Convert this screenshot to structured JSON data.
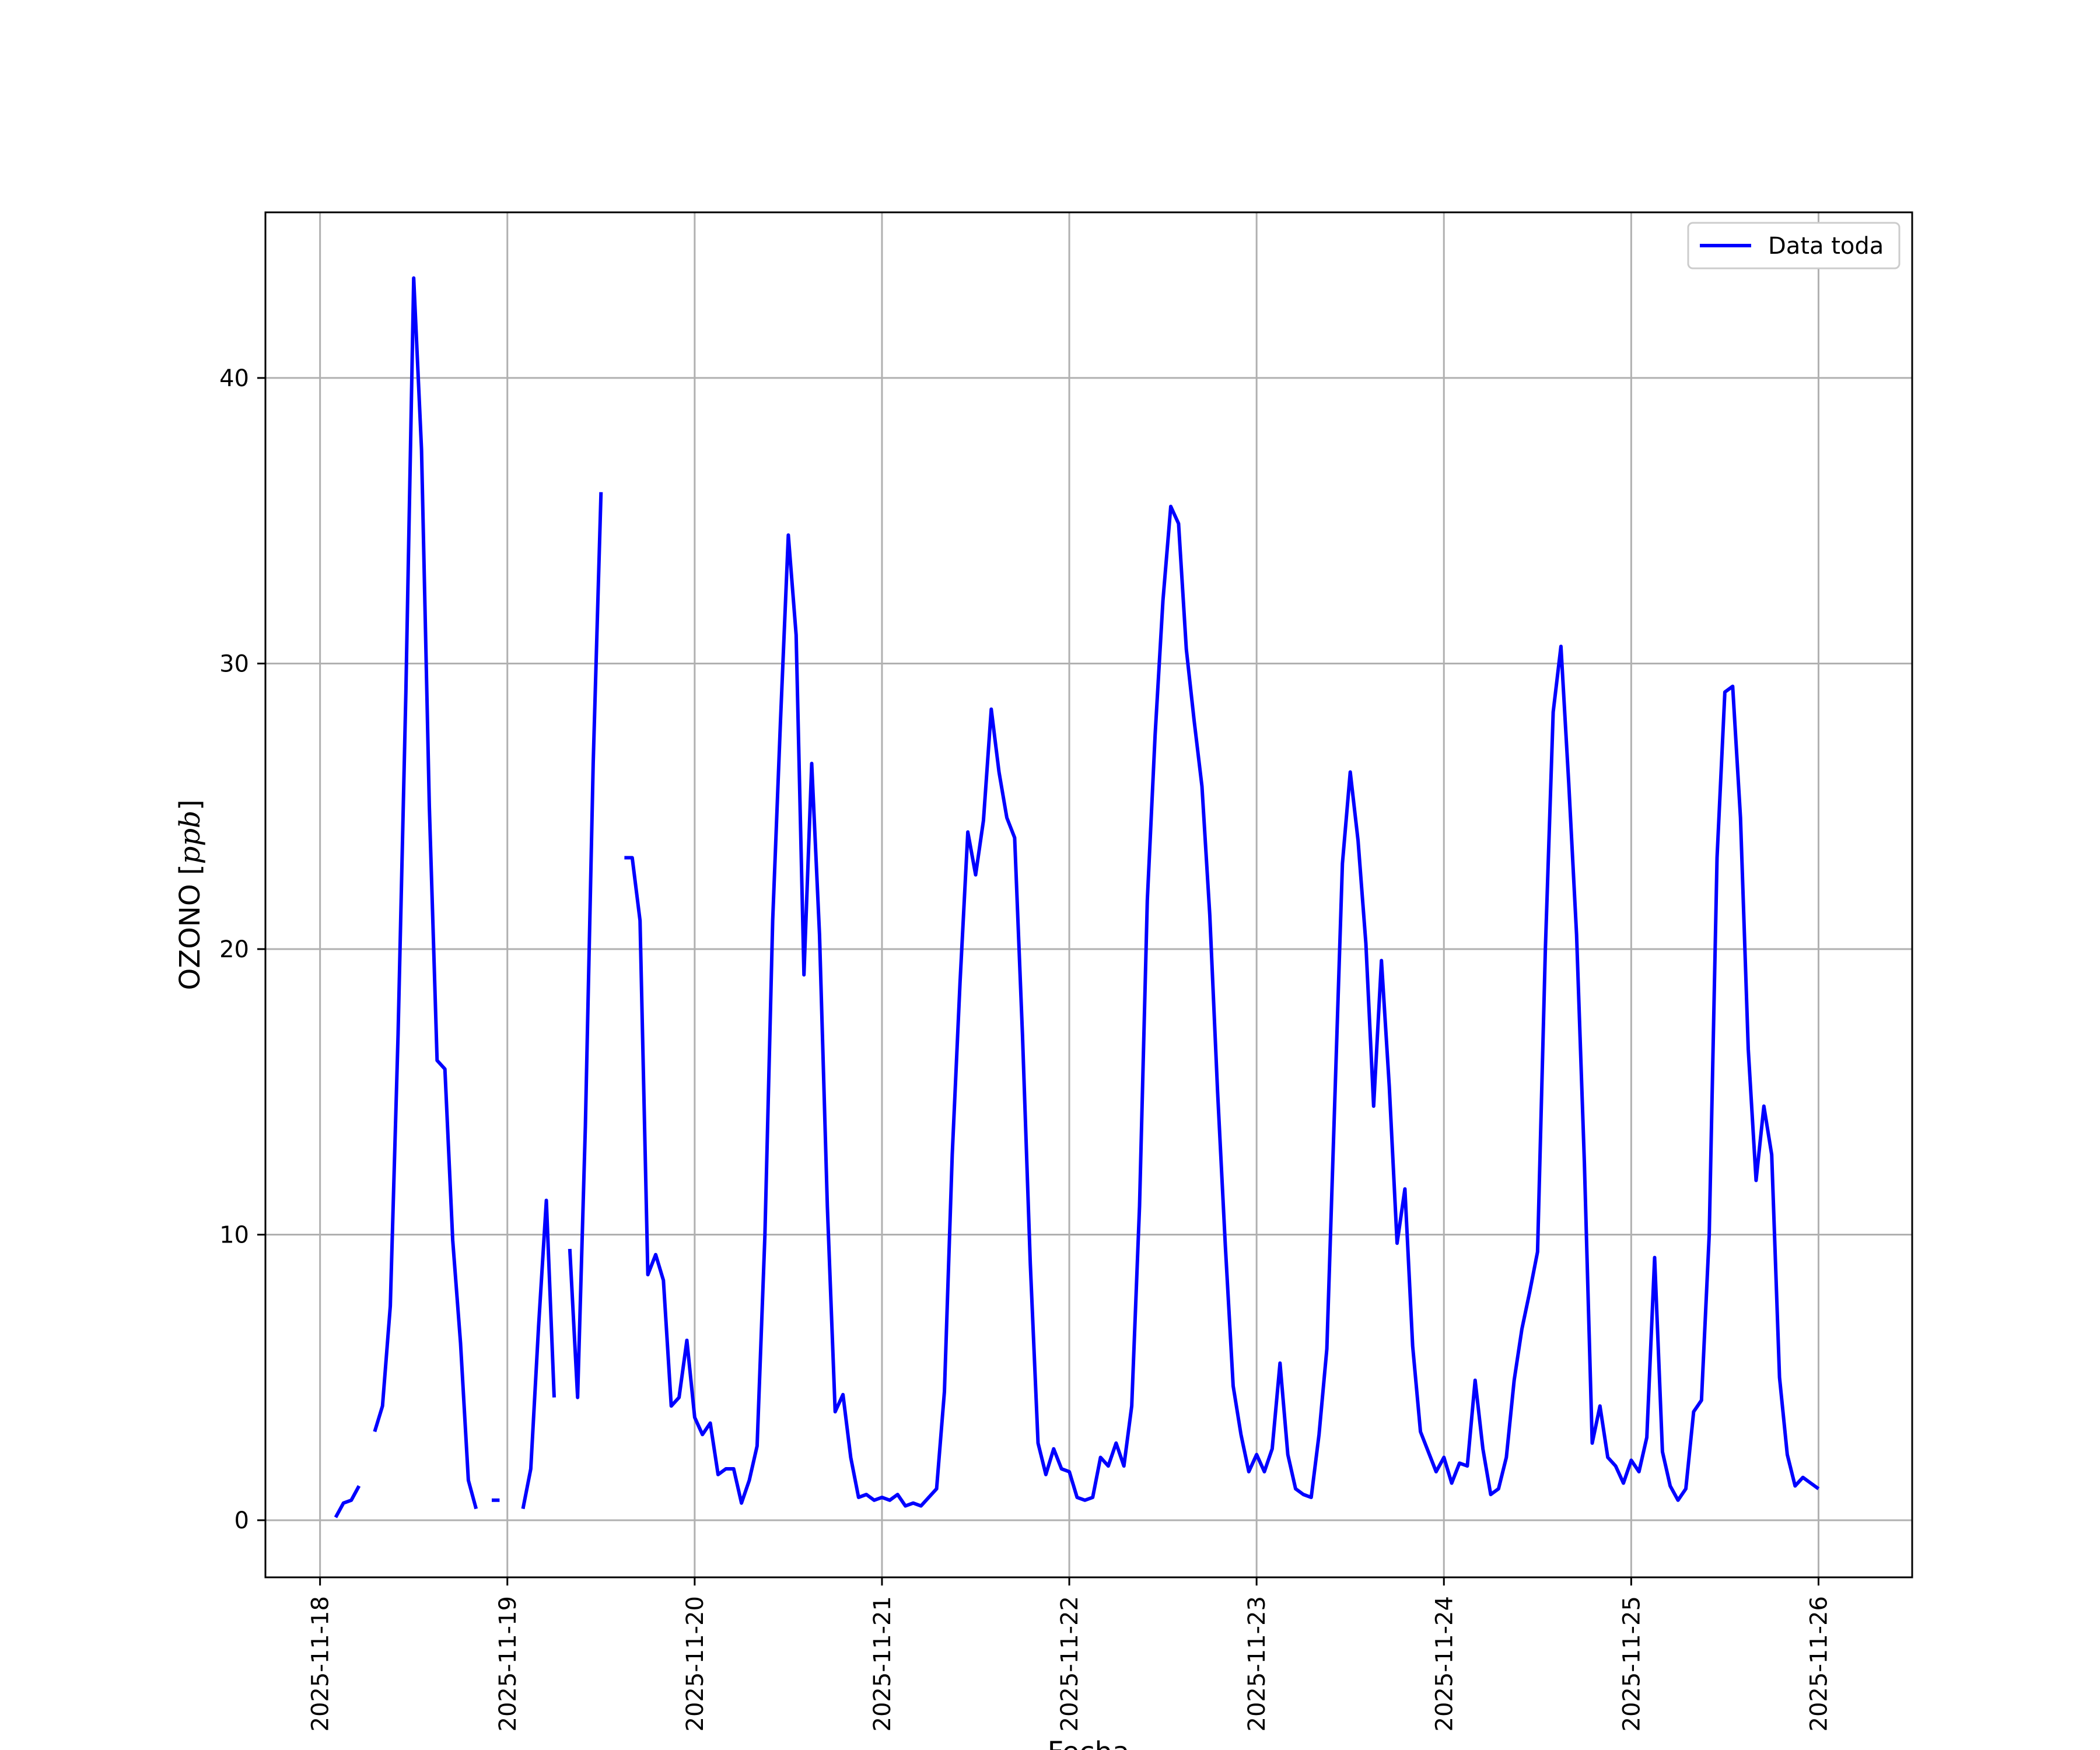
{
  "chart_data": {
    "type": "line",
    "title": "",
    "xlabel": "Fecha",
    "ylabel_main": "OZONO [",
    "ylabel_unit": "ppb",
    "ylabel_close": "]",
    "x_tick_labels": [
      "2025-11-18",
      "2025-11-19",
      "2025-11-20",
      "2025-11-21",
      "2025-11-22",
      "2025-11-23",
      "2025-11-24",
      "2025-11-25",
      "2025-11-26"
    ],
    "y_ticks": [
      0,
      10,
      20,
      30,
      40
    ],
    "xlim": [
      "2025-11-17 17:00",
      "2025-11-26 12:00"
    ],
    "ylim": [
      -2.0,
      45.8
    ],
    "grid": true,
    "legend": "top-right",
    "series": [
      {
        "name": "Data toda",
        "color": "#0000ff",
        "points": [
          [
            "2025-11-18 02:00",
            0.1
          ],
          [
            "2025-11-18 03:00",
            0.6
          ],
          [
            "2025-11-18 04:00",
            0.7
          ],
          [
            "2025-11-18 05:00",
            1.2
          ],
          [
            "2025-11-18 06:00",
            null
          ],
          [
            "2025-11-18 07:00",
            3.1
          ],
          [
            "2025-11-18 08:00",
            4.0
          ],
          [
            "2025-11-18 09:00",
            7.5
          ],
          [
            "2025-11-18 10:00",
            17.0
          ],
          [
            "2025-11-18 11:00",
            29.0
          ],
          [
            "2025-11-18 12:00",
            43.5
          ],
          [
            "2025-11-18 13:00",
            37.5
          ],
          [
            "2025-11-18 14:00",
            25.0
          ],
          [
            "2025-11-18 15:00",
            16.1
          ],
          [
            "2025-11-18 16:00",
            15.8
          ],
          [
            "2025-11-18 17:00",
            9.8
          ],
          [
            "2025-11-18 18:00",
            6.2
          ],
          [
            "2025-11-18 19:00",
            1.4
          ],
          [
            "2025-11-18 20:00",
            0.4
          ],
          [
            "2025-11-18 21:00",
            null
          ],
          [
            "2025-11-18 22:00",
            0.7
          ],
          [
            "2025-11-18 23:00",
            0.7
          ],
          [
            "2025-11-19 00:00",
            null
          ],
          [
            "2025-11-19 02:00",
            0.4
          ],
          [
            "2025-11-19 03:00",
            1.8
          ],
          [
            "2025-11-19 04:00",
            6.8
          ],
          [
            "2025-11-19 05:00",
            11.2
          ],
          [
            "2025-11-19 06:00",
            4.3
          ],
          [
            "2025-11-19 07:00",
            null
          ],
          [
            "2025-11-19 08:00",
            9.5
          ],
          [
            "2025-11-19 09:00",
            4.3
          ],
          [
            "2025-11-19 10:00",
            13.8
          ],
          [
            "2025-11-19 11:00",
            26.5
          ],
          [
            "2025-11-19 12:00",
            36.0
          ],
          [
            "2025-11-19 13:00",
            null
          ],
          [
            "2025-11-19 15:00",
            23.2
          ],
          [
            "2025-11-19 16:00",
            23.2
          ],
          [
            "2025-11-19 17:00",
            21.0
          ],
          [
            "2025-11-19 18:00",
            8.6
          ],
          [
            "2025-11-19 19:00",
            9.3
          ],
          [
            "2025-11-19 20:00",
            8.4
          ],
          [
            "2025-11-19 21:00",
            4.0
          ],
          [
            "2025-11-19 22:00",
            4.3
          ],
          [
            "2025-11-19 23:00",
            6.3
          ],
          [
            "2025-11-20 00:00",
            3.6
          ],
          [
            "2025-11-20 01:00",
            3.0
          ],
          [
            "2025-11-20 02:00",
            3.4
          ],
          [
            "2025-11-20 03:00",
            1.6
          ],
          [
            "2025-11-20 04:00",
            1.8
          ],
          [
            "2025-11-20 05:00",
            1.8
          ],
          [
            "2025-11-20 06:00",
            0.6
          ],
          [
            "2025-11-20 07:00",
            1.4
          ],
          [
            "2025-11-20 08:00",
            2.6
          ],
          [
            "2025-11-20 09:00",
            10.0
          ],
          [
            "2025-11-20 10:00",
            21.0
          ],
          [
            "2025-11-20 11:00",
            28.0
          ],
          [
            "2025-11-20 12:00",
            34.5
          ],
          [
            "2025-11-20 13:00",
            31.0
          ],
          [
            "2025-11-20 14:00",
            19.1
          ],
          [
            "2025-11-20 15:00",
            26.5
          ],
          [
            "2025-11-20 16:00",
            20.5
          ],
          [
            "2025-11-20 17:00",
            11.0
          ],
          [
            "2025-11-20 18:00",
            3.8
          ],
          [
            "2025-11-20 19:00",
            4.4
          ],
          [
            "2025-11-20 20:00",
            2.2
          ],
          [
            "2025-11-20 21:00",
            0.8
          ],
          [
            "2025-11-20 22:00",
            0.9
          ],
          [
            "2025-11-20 23:00",
            0.7
          ],
          [
            "2025-11-21 00:00",
            0.8
          ],
          [
            "2025-11-21 01:00",
            0.7
          ],
          [
            "2025-11-21 02:00",
            0.9
          ],
          [
            "2025-11-21 03:00",
            0.5
          ],
          [
            "2025-11-21 04:00",
            0.6
          ],
          [
            "2025-11-21 05:00",
            0.5
          ],
          [
            "2025-11-21 06:00",
            0.8
          ],
          [
            "2025-11-21 07:00",
            1.1
          ],
          [
            "2025-11-21 08:00",
            4.5
          ],
          [
            "2025-11-21 09:00",
            12.8
          ],
          [
            "2025-11-21 10:00",
            18.8
          ],
          [
            "2025-11-21 11:00",
            24.1
          ],
          [
            "2025-11-21 12:00",
            22.6
          ],
          [
            "2025-11-21 13:00",
            24.5
          ],
          [
            "2025-11-21 14:00",
            28.4
          ],
          [
            "2025-11-21 15:00",
            26.2
          ],
          [
            "2025-11-21 16:00",
            24.6
          ],
          [
            "2025-11-21 17:00",
            23.9
          ],
          [
            "2025-11-21 18:00",
            17.0
          ],
          [
            "2025-11-21 19:00",
            9.0
          ],
          [
            "2025-11-21 20:00",
            2.7
          ],
          [
            "2025-11-21 21:00",
            1.6
          ],
          [
            "2025-11-21 22:00",
            2.5
          ],
          [
            "2025-11-21 23:00",
            1.8
          ],
          [
            "2025-11-22 00:00",
            1.7
          ],
          [
            "2025-11-22 01:00",
            0.8
          ],
          [
            "2025-11-22 02:00",
            0.7
          ],
          [
            "2025-11-22 03:00",
            0.8
          ],
          [
            "2025-11-22 04:00",
            2.2
          ],
          [
            "2025-11-22 05:00",
            1.9
          ],
          [
            "2025-11-22 06:00",
            2.7
          ],
          [
            "2025-11-22 07:00",
            1.9
          ],
          [
            "2025-11-22 08:00",
            4.0
          ],
          [
            "2025-11-22 09:00",
            11.0
          ],
          [
            "2025-11-22 10:00",
            21.7
          ],
          [
            "2025-11-22 11:00",
            27.5
          ],
          [
            "2025-11-22 12:00",
            32.2
          ],
          [
            "2025-11-22 13:00",
            35.5
          ],
          [
            "2025-11-22 14:00",
            34.9
          ],
          [
            "2025-11-22 15:00",
            30.5
          ],
          [
            "2025-11-22 16:00",
            28.0
          ],
          [
            "2025-11-22 17:00",
            25.7
          ],
          [
            "2025-11-22 18:00",
            21.2
          ],
          [
            "2025-11-22 19:00",
            15.0
          ],
          [
            "2025-11-22 20:00",
            9.6
          ],
          [
            "2025-11-22 21:00",
            4.7
          ],
          [
            "2025-11-22 22:00",
            3.0
          ],
          [
            "2025-11-22 23:00",
            1.7
          ],
          [
            "2025-11-23 00:00",
            2.3
          ],
          [
            "2025-11-23 01:00",
            1.7
          ],
          [
            "2025-11-23 02:00",
            2.5
          ],
          [
            "2025-11-23 03:00",
            5.5
          ],
          [
            "2025-11-23 04:00",
            2.3
          ],
          [
            "2025-11-23 05:00",
            1.1
          ],
          [
            "2025-11-23 06:00",
            0.9
          ],
          [
            "2025-11-23 07:00",
            0.8
          ],
          [
            "2025-11-23 08:00",
            3.0
          ],
          [
            "2025-11-23 09:00",
            6.0
          ],
          [
            "2025-11-23 10:00",
            14.5
          ],
          [
            "2025-11-23 11:00",
            23.0
          ],
          [
            "2025-11-23 12:00",
            26.2
          ],
          [
            "2025-11-23 13:00",
            23.8
          ],
          [
            "2025-11-23 14:00",
            20.2
          ],
          [
            "2025-11-23 15:00",
            14.5
          ],
          [
            "2025-11-23 16:00",
            19.6
          ],
          [
            "2025-11-23 17:00",
            15.2
          ],
          [
            "2025-11-23 18:00",
            9.7
          ],
          [
            "2025-11-23 19:00",
            11.6
          ],
          [
            "2025-11-23 20:00",
            6.1
          ],
          [
            "2025-11-23 21:00",
            3.1
          ],
          [
            "2025-11-23 22:00",
            2.4
          ],
          [
            "2025-11-23 23:00",
            1.7
          ],
          [
            "2025-11-24 00:00",
            2.2
          ],
          [
            "2025-11-24 01:00",
            1.3
          ],
          [
            "2025-11-24 02:00",
            2.0
          ],
          [
            "2025-11-24 03:00",
            1.9
          ],
          [
            "2025-11-24 04:00",
            4.9
          ],
          [
            "2025-11-24 05:00",
            2.5
          ],
          [
            "2025-11-24 06:00",
            0.9
          ],
          [
            "2025-11-24 07:00",
            1.1
          ],
          [
            "2025-11-24 08:00",
            2.2
          ],
          [
            "2025-11-24 09:00",
            4.9
          ],
          [
            "2025-11-24 10:00",
            6.7
          ],
          [
            "2025-11-24 11:00",
            8.0
          ],
          [
            "2025-11-24 12:00",
            9.4
          ],
          [
            "2025-11-24 13:00",
            20.0
          ],
          [
            "2025-11-24 14:00",
            28.3
          ],
          [
            "2025-11-24 15:00",
            30.6
          ],
          [
            "2025-11-24 16:00",
            25.8
          ],
          [
            "2025-11-24 17:00",
            20.5
          ],
          [
            "2025-11-24 18:00",
            12.5
          ],
          [
            "2025-11-24 19:00",
            2.7
          ],
          [
            "2025-11-24 20:00",
            4.0
          ],
          [
            "2025-11-24 21:00",
            2.2
          ],
          [
            "2025-11-24 22:00",
            1.9
          ],
          [
            "2025-11-24 23:00",
            1.3
          ],
          [
            "2025-11-25 00:00",
            2.1
          ],
          [
            "2025-11-25 01:00",
            1.7
          ],
          [
            "2025-11-25 02:00",
            2.9
          ],
          [
            "2025-11-25 03:00",
            9.2
          ],
          [
            "2025-11-25 04:00",
            2.4
          ],
          [
            "2025-11-25 05:00",
            1.2
          ],
          [
            "2025-11-25 06:00",
            0.7
          ],
          [
            "2025-11-25 07:00",
            1.1
          ],
          [
            "2025-11-25 08:00",
            3.8
          ],
          [
            "2025-11-25 09:00",
            4.2
          ],
          [
            "2025-11-25 10:00",
            10.0
          ],
          [
            "2025-11-25 11:00",
            23.2
          ],
          [
            "2025-11-25 12:00",
            29.0
          ],
          [
            "2025-11-25 13:00",
            29.2
          ],
          [
            "2025-11-25 14:00",
            24.6
          ],
          [
            "2025-11-25 15:00",
            16.5
          ],
          [
            "2025-11-25 16:00",
            11.9
          ],
          [
            "2025-11-25 17:00",
            14.5
          ],
          [
            "2025-11-25 18:00",
            12.8
          ],
          [
            "2025-11-25 19:00",
            5.0
          ],
          [
            "2025-11-25 20:00",
            2.3
          ],
          [
            "2025-11-25 21:00",
            1.2
          ],
          [
            "2025-11-25 22:00",
            1.5
          ],
          [
            "2025-11-25 23:00",
            1.3
          ],
          [
            "2025-11-26 00:00",
            1.1
          ]
        ]
      }
    ]
  }
}
